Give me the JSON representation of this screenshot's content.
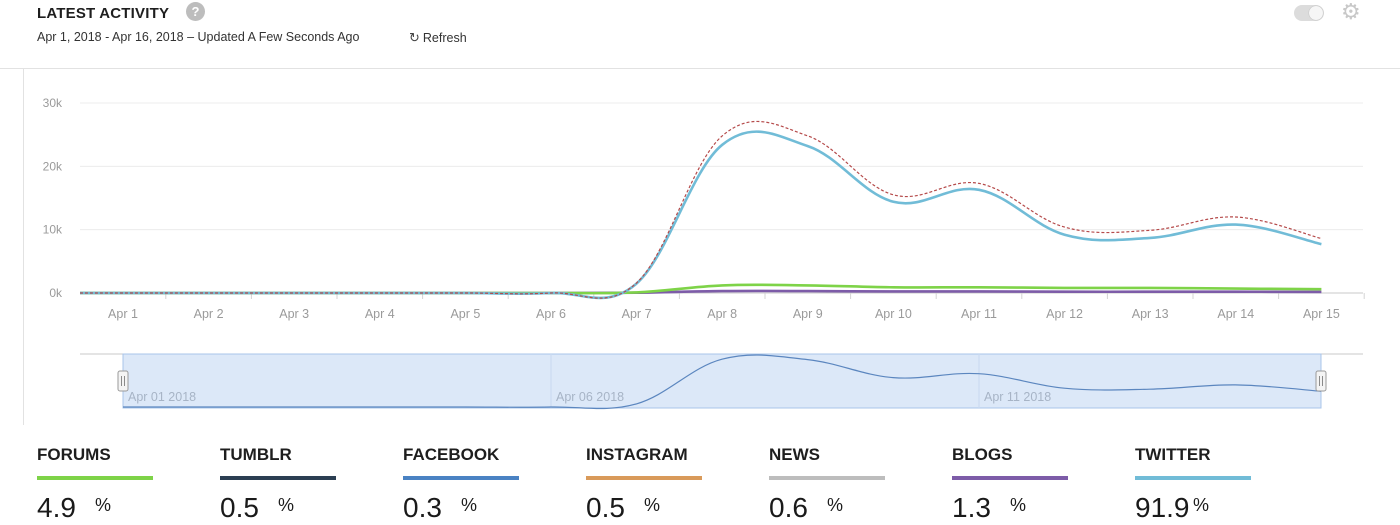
{
  "header": {
    "title": "LATEST ACTIVITY",
    "subtitle": "Apr 1, 2018 - Apr 16, 2018 – Updated A Few Seconds Ago",
    "refresh_label": "Refresh"
  },
  "chart_data": {
    "type": "line",
    "categories": [
      "Apr 1",
      "Apr 2",
      "Apr 3",
      "Apr 4",
      "Apr 5",
      "Apr 6",
      "Apr 7",
      "Apr 8",
      "Apr 9",
      "Apr 10",
      "Apr 11",
      "Apr 12",
      "Apr 13",
      "Apr 14",
      "Apr 15"
    ],
    "y_ticks": [
      "30k",
      "20k",
      "10k",
      "0k"
    ],
    "ylim": [
      0,
      30000
    ],
    "series": [
      {
        "key": "total",
        "color": "#b54a4a",
        "dashed": true,
        "values": [
          0,
          0,
          0,
          0,
          0,
          0,
          1600,
          24800,
          24800,
          15500,
          17300,
          10400,
          9900,
          12000,
          8600
        ]
      },
      {
        "key": "twitter",
        "color": "#71bcd7",
        "values": [
          0,
          0,
          0,
          0,
          0,
          0,
          1500,
          23400,
          23200,
          14400,
          16300,
          9200,
          8700,
          10800,
          7700
        ]
      },
      {
        "key": "forums",
        "color": "#7ed348",
        "values": [
          0,
          0,
          0,
          0,
          0,
          0,
          100,
          1200,
          1200,
          900,
          900,
          800,
          800,
          700,
          600
        ]
      },
      {
        "key": "blogs",
        "color": "#7d5ca8",
        "values": [
          0,
          0,
          0,
          0,
          0,
          0,
          50,
          300,
          300,
          250,
          250,
          200,
          200,
          200,
          180
        ]
      }
    ],
    "navigator": {
      "labels": [
        "Apr 01 2018",
        "Apr 06 2018",
        "Apr 11 2018"
      ]
    }
  },
  "legend": [
    {
      "name": "FORUMS",
      "value": "4.9",
      "unit": "%",
      "color": "#7ed348"
    },
    {
      "name": "TUMBLR",
      "value": "0.5",
      "unit": "%",
      "color": "#2b3e52"
    },
    {
      "name": "FACEBOOK",
      "value": "0.3",
      "unit": "%",
      "color": "#4a82c3"
    },
    {
      "name": "INSTAGRAM",
      "value": "0.5",
      "unit": "%",
      "color": "#d99a5a"
    },
    {
      "name": "NEWS",
      "value": "0.6",
      "unit": "%",
      "color": "#bdbdbd"
    },
    {
      "name": "BLOGS",
      "value": "1.3",
      "unit": "%",
      "color": "#7d5ca8"
    },
    {
      "name": "TWITTER",
      "value": "91.9",
      "unit": "%",
      "color": "#71bcd7"
    }
  ]
}
